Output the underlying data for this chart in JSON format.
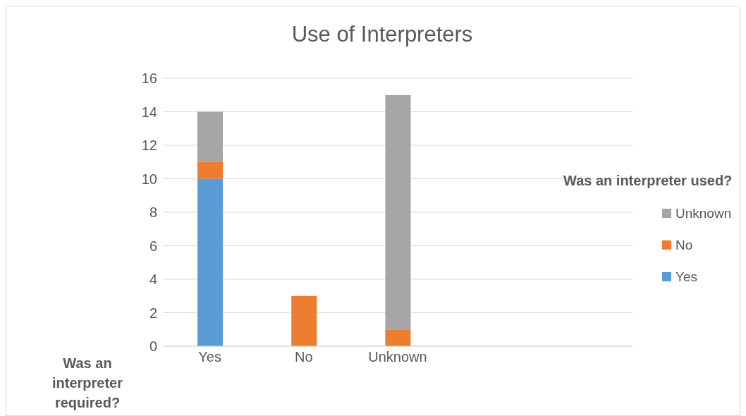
{
  "chart_data": {
    "type": "bar",
    "title": "Use of Interpreters",
    "xlabel": "Was an interpreter required?",
    "legend_title": "Was an interpreter used?",
    "categories": [
      "Yes",
      "No",
      "Unknown",
      null,
      null
    ],
    "stacked": true,
    "series": [
      {
        "name": "Yes",
        "color": "#5b9bd5",
        "values": [
          10,
          0,
          0,
          null,
          null
        ]
      },
      {
        "name": "No",
        "color": "#ed7d31",
        "values": [
          1,
          3,
          1,
          null,
          null
        ]
      },
      {
        "name": "Unknown",
        "color": "#a5a5a5",
        "values": [
          3,
          0,
          14,
          null,
          null
        ]
      }
    ],
    "ylim": [
      0,
      16
    ],
    "yticks": [
      0,
      2,
      4,
      6,
      8,
      10,
      12,
      14,
      16
    ],
    "grid": "y",
    "legend": "right"
  }
}
